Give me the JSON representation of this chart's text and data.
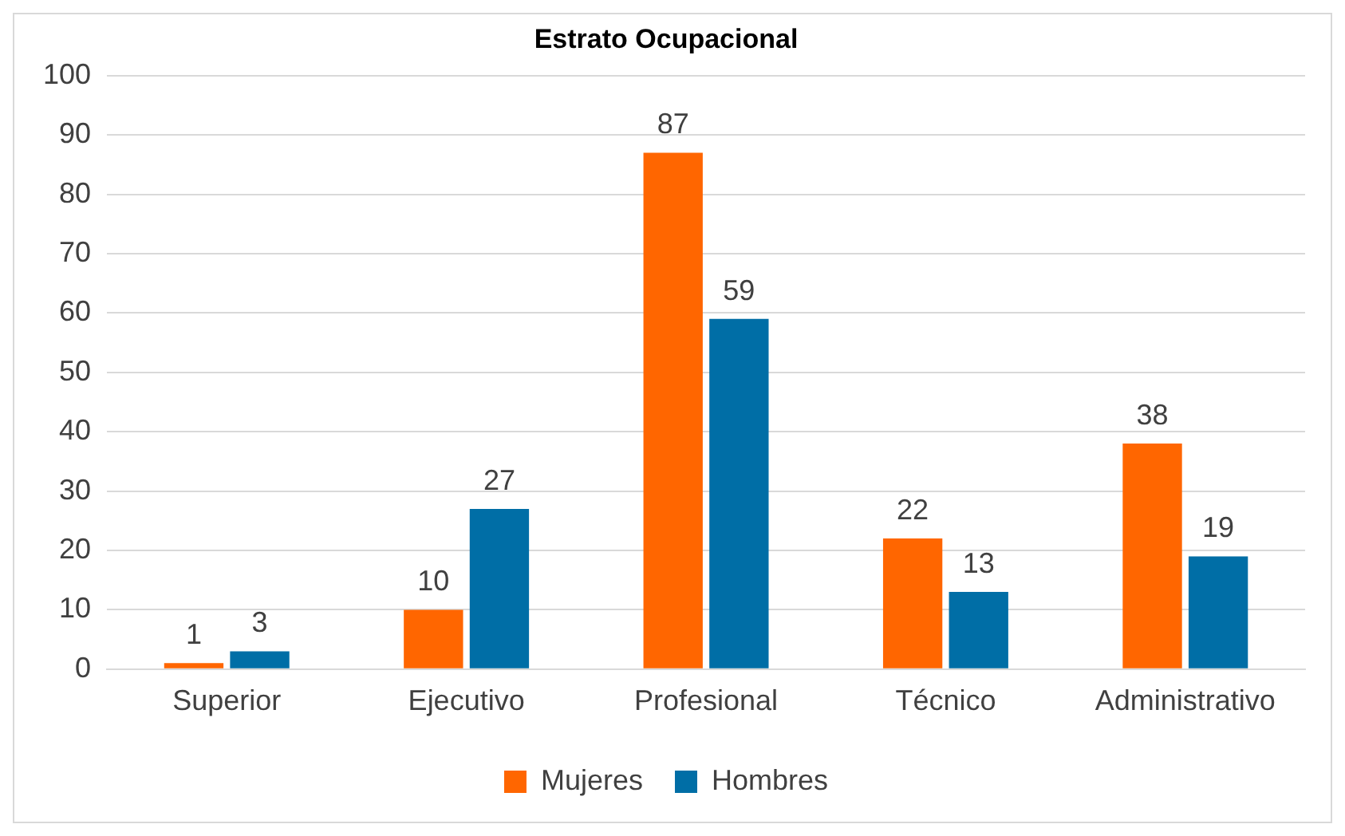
{
  "chart_data": {
    "type": "bar",
    "title": "Estrato Ocupacional",
    "categories": [
      "Superior",
      "Ejecutivo",
      "Profesional",
      "Técnico",
      "Administrativo"
    ],
    "series": [
      {
        "name": "Mujeres",
        "color": "#ff6600",
        "values": [
          1,
          10,
          87,
          22,
          38
        ]
      },
      {
        "name": "Hombres",
        "color": "#006ea6",
        "values": [
          3,
          27,
          59,
          13,
          19
        ]
      }
    ],
    "ylim": [
      0,
      100
    ],
    "yticks": [
      0,
      10,
      20,
      30,
      40,
      50,
      60,
      70,
      80,
      90,
      100
    ],
    "grid": "y",
    "legend": "bottom",
    "data_labels": true
  }
}
